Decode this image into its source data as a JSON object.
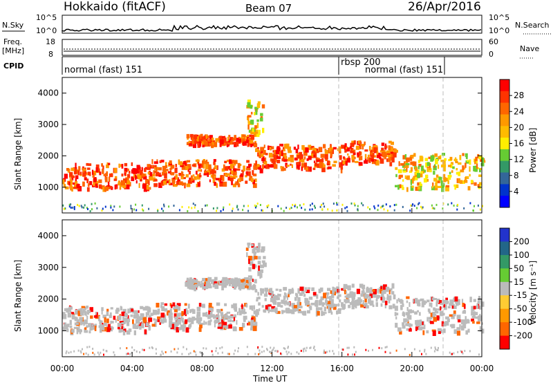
{
  "header": {
    "station": "Hokkaido (fitACF)",
    "beam": "Beam 07",
    "date": "26/Apr/2016"
  },
  "panels": {
    "nsky_label": "N.Sky",
    "nsky_ticks": [
      "10^5",
      "10^0"
    ],
    "nsky_right_ticks": [
      "10^5",
      "10^0"
    ],
    "nsearch_label": "N.Search",
    "freq_label": "Freq.",
    "freq_unit": "[MHz]",
    "freq_ticks": [
      "18",
      "8"
    ],
    "nave_ticks": [
      "60",
      "0"
    ],
    "nave_label": "Nave",
    "cpid_label": "CPID",
    "cpid_segments": [
      {
        "start_hour": 0,
        "label": "normal (fast) 151"
      },
      {
        "start_hour": 16,
        "label": "rbsp 200"
      },
      {
        "start_hour": 16,
        "label": "normal (fast) 151"
      },
      {
        "start_hour": 22,
        "label": ""
      }
    ]
  },
  "axes": {
    "ylabel": "Slant Range [km]",
    "xlabel": "Time UT",
    "x_ticks": [
      "00:00",
      "04:00",
      "08:00",
      "12:00",
      "16:00",
      "20:00",
      "00:00"
    ],
    "y_ticks": [
      "1000",
      "2000",
      "3000",
      "4000"
    ]
  },
  "colorbars": {
    "power": {
      "label": "Power [dB]",
      "ticks": [
        "28",
        "24",
        "20",
        "16",
        "12",
        "8",
        "4"
      ],
      "colors": [
        "#ff0000",
        "#ff3300",
        "#ff6600",
        "#ff9900",
        "#ffbb00",
        "#ffee00",
        "#66cc33",
        "#339966",
        "#336699",
        "#0033cc",
        "#0000ff"
      ]
    },
    "velocity": {
      "label": "Velocity [m s⁻¹]",
      "ticks": [
        "200",
        "100",
        "50",
        "15",
        "-15",
        "-50",
        "-100",
        "-200"
      ],
      "colors": [
        "#2233cc",
        "#226688",
        "#339966",
        "#66cc33",
        "#bbbbbb",
        "#ffcc33",
        "#ff9900",
        "#ff6600",
        "#ff0000"
      ]
    }
  },
  "chart_data": {
    "type": "heatmap",
    "x_range_hours": [
      0,
      24
    ],
    "y_range_km": [
      180,
      4500
    ],
    "power_echo_bands": [
      {
        "t0": 0,
        "t1": 5,
        "r0": 1000,
        "r1": 1800,
        "level": "high"
      },
      {
        "t0": 5,
        "t1": 11,
        "r0": 1100,
        "r1": 1900,
        "level": "high"
      },
      {
        "t0": 11,
        "t1": 16,
        "r0": 1600,
        "r1": 2400,
        "level": "high"
      },
      {
        "t0": 16,
        "t1": 19,
        "r0": 1800,
        "r1": 2500,
        "level": "high"
      },
      {
        "t0": 19,
        "t1": 24,
        "r0": 1000,
        "r1": 2100,
        "level": "mid"
      },
      {
        "t0": 7,
        "t1": 11,
        "r0": 2400,
        "r1": 2700,
        "level": "high"
      },
      {
        "t0": 10.5,
        "t1": 11.5,
        "r0": 2700,
        "r1": 3800,
        "level": "mid"
      }
    ],
    "velocity_dominant": "-15..15"
  }
}
